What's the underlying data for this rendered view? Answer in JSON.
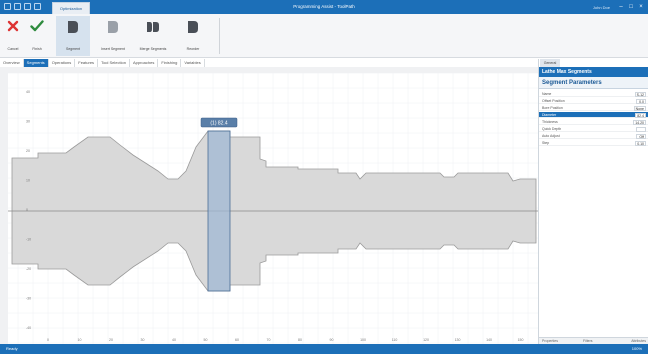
{
  "title_bar": {
    "tab_label": "Optimization",
    "window_title": "Programming Assist - ToolPath",
    "user": "John Doe",
    "minimize": "–",
    "maximize": "□",
    "close": "×"
  },
  "ribbon": {
    "buttons": [
      {
        "label": "Cancel",
        "icon": "cancel-x-icon"
      },
      {
        "label": "Finish",
        "icon": "checkmark-icon"
      },
      {
        "label": "Segment",
        "icon": "segment-tool-icon"
      },
      {
        "label": "Insert Segment",
        "icon": "insert-segment-icon"
      },
      {
        "label": "Merge Segments",
        "icon": "merge-segments-icon"
      },
      {
        "label": "Reorder",
        "icon": "reorder-icon"
      }
    ]
  },
  "tabs": [
    {
      "label": "Overview"
    },
    {
      "label": "Segments"
    },
    {
      "label": "Operations"
    },
    {
      "label": "Features"
    },
    {
      "label": "Tool Selection"
    },
    {
      "label": "Approaches"
    },
    {
      "label": "Finishing"
    },
    {
      "label": "Variables"
    }
  ],
  "active_tab_index": 1,
  "canvas": {
    "selection_label": "(1) 82.4",
    "y_labels": [
      "40",
      "30",
      "20",
      "10",
      "0",
      "-10",
      "-20",
      "-30",
      "-40"
    ],
    "x_labels": [
      "0",
      "10",
      "20",
      "30",
      "40",
      "50",
      "60",
      "70",
      "80",
      "90",
      "100",
      "110",
      "120",
      "130",
      "140",
      "150"
    ],
    "colors": {
      "part_fill": "#d9d9d9",
      "part_stroke": "#9a9a9a",
      "selection_fill": "#9fb7d3",
      "axis": "#888888"
    }
  },
  "right_panel": {
    "tab": "General",
    "header_title": "Lathe Max Segments",
    "section_title": "Segment Parameters",
    "properties": [
      {
        "label": "Name",
        "value": "S-12"
      },
      {
        "label": "Offset Position",
        "value": "0.0"
      },
      {
        "label": "Bore Position",
        "value": "None"
      },
      {
        "label": "Diameter",
        "value": "82.4"
      },
      {
        "label": "Thickness",
        "value": "14.20"
      },
      {
        "label": "Quick Depth",
        "value": ""
      },
      {
        "label": "Auto Adjust",
        "value": "Off"
      },
      {
        "label": "Step",
        "value": "0.10"
      }
    ],
    "selected_index": 3,
    "footer": [
      "Properties",
      "Filters",
      "Attributes"
    ]
  },
  "status_bar": {
    "left": "Ready",
    "right": "100%"
  }
}
